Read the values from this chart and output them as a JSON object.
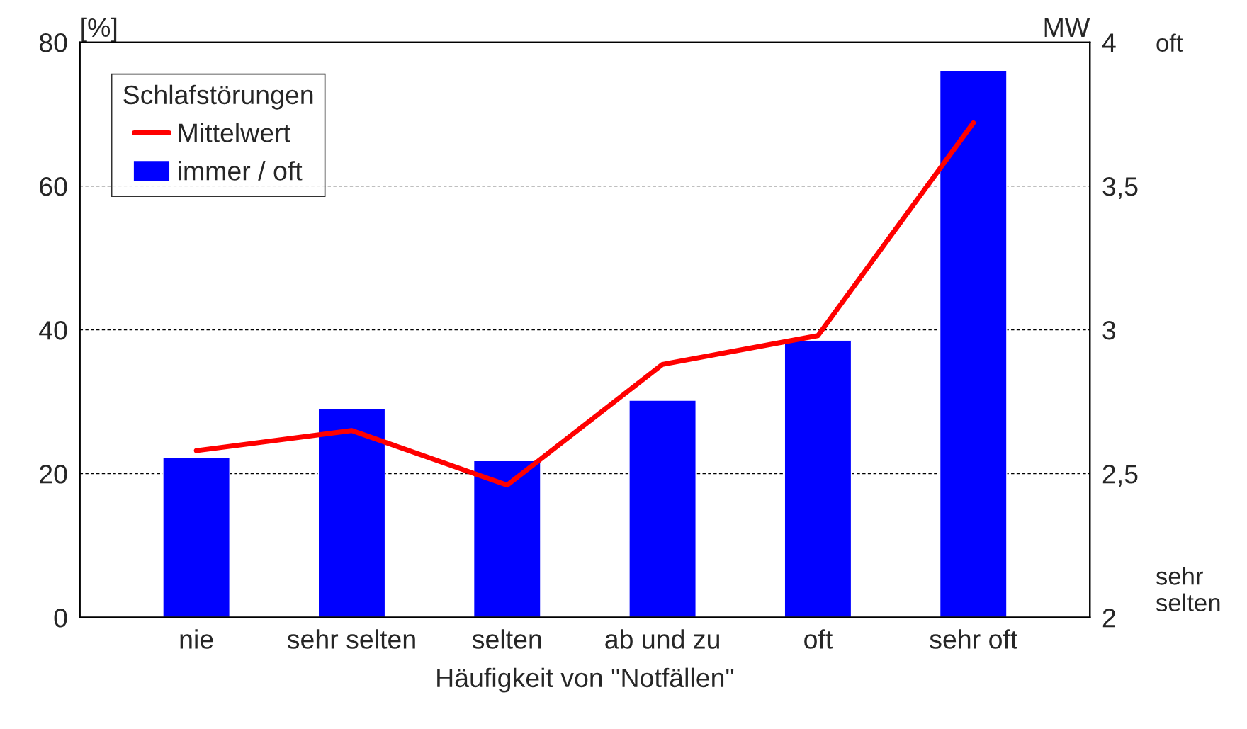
{
  "chart_data": {
    "type": "bar",
    "xlabel": "Häufigkeit von \"Notfällen\"",
    "ylabel": "[%]",
    "y2label": "MW",
    "legend_title": "Schlafstörungen",
    "categories": [
      "nie",
      "sehr selten",
      "selten",
      "ab und zu",
      "oft",
      "sehr oft"
    ],
    "series": [
      {
        "name": "Mittelwert",
        "type": "line",
        "axis": "y2",
        "color": "#ff0000",
        "values": [
          2.58,
          2.65,
          2.46,
          2.88,
          2.98,
          3.72
        ]
      },
      {
        "name": "immer / oft",
        "axis": "y",
        "color": "#0000ff",
        "values": [
          22.2,
          29.1,
          21.8,
          30.2,
          38.5,
          76.1
        ]
      }
    ],
    "ylim": [
      0,
      80
    ],
    "yticks": [
      0,
      20,
      40,
      60,
      80
    ],
    "y2lim": [
      2,
      4
    ],
    "y2ticks": [
      {
        "value": 2,
        "label": "2"
      },
      {
        "value": 2.5,
        "label": "2,5"
      },
      {
        "value": 3,
        "label": "3"
      },
      {
        "value": 3.5,
        "label": "3,5"
      },
      {
        "value": 4,
        "label": "4"
      }
    ],
    "annotations": [
      "oft",
      "sehr\nselten"
    ],
    "grid": "y",
    "legend": "top left",
    "marker": "none",
    "line_style": "solid"
  }
}
